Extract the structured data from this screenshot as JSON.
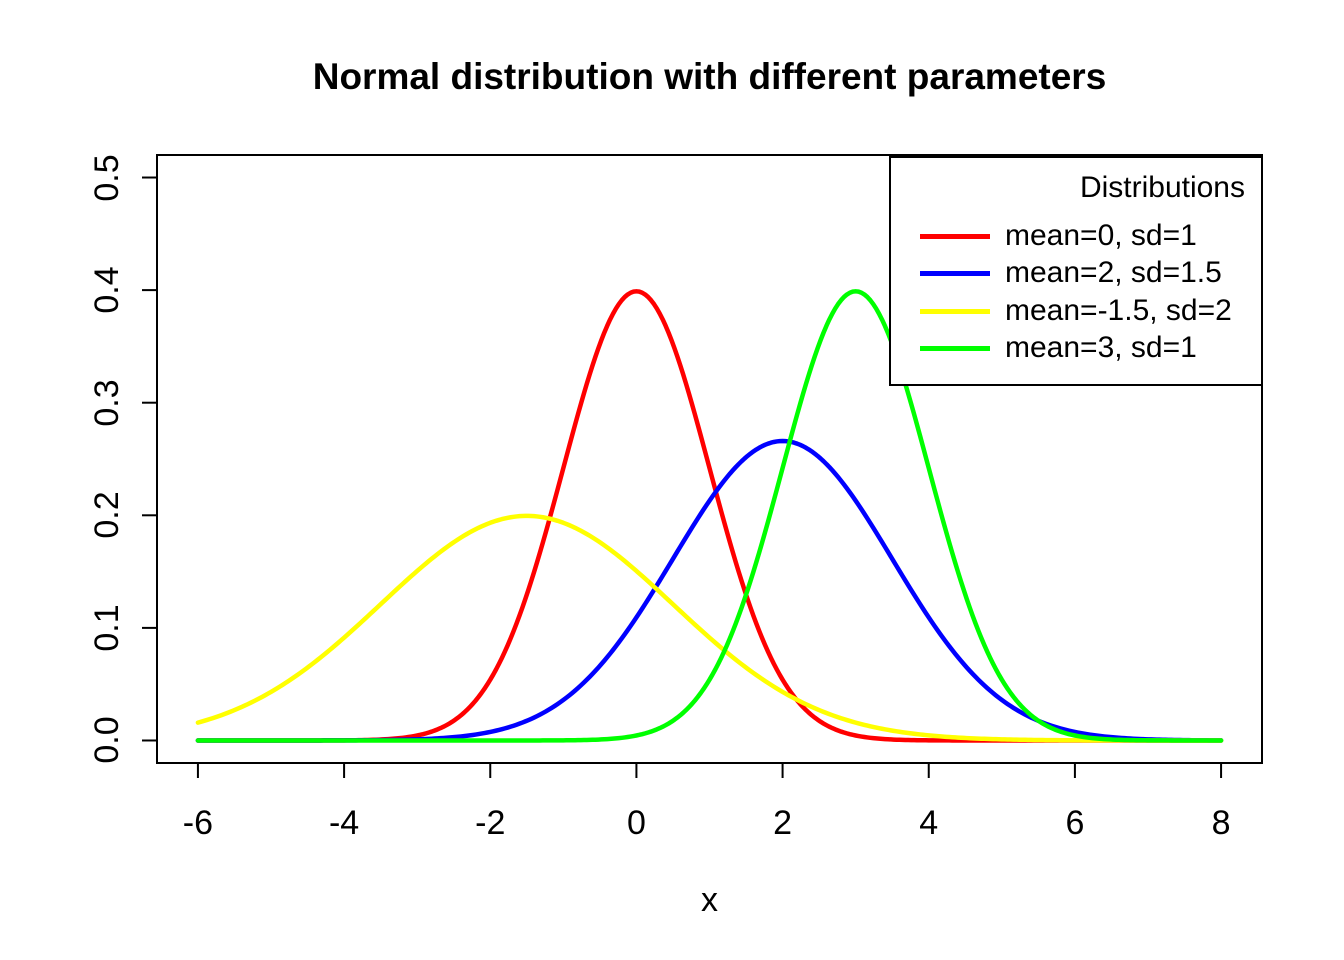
{
  "chart_data": {
    "type": "line",
    "title": "Normal distribution with different parameters",
    "xlabel": "x",
    "ylabel": "",
    "xlim": [
      -6,
      8
    ],
    "ylim": [
      0,
      0.5
    ],
    "x_ticks": [
      -6,
      -4,
      -2,
      0,
      2,
      4,
      6,
      8
    ],
    "x_tick_labels": [
      "-6",
      "-4",
      "-2",
      "0",
      "2",
      "4",
      "6",
      "8"
    ],
    "y_ticks": [
      0,
      0.1,
      0.2,
      0.3,
      0.4,
      0.5
    ],
    "y_tick_labels": [
      "0.0",
      "0.1",
      "0.2",
      "0.3",
      "0.4",
      "0.5"
    ],
    "grid": false,
    "background": "#FFFFFF",
    "axis_color": "#000000",
    "curve_function": "normal probability density: y = dnorm(x, mean, sd)",
    "sample_range": [
      -6,
      8
    ],
    "series": [
      {
        "name": "mean=0, sd=1",
        "color": "#FF0000",
        "mean": 0,
        "sd": 1,
        "peak_x": 0,
        "peak_y": 0.3989
      },
      {
        "name": "mean=2, sd=1.5",
        "color": "#0000FF",
        "mean": 2,
        "sd": 1.5,
        "peak_x": 2,
        "peak_y": 0.266
      },
      {
        "name": "mean=-1.5, sd=2",
        "color": "#FFFF00",
        "mean": -1.5,
        "sd": 2,
        "peak_x": -1.5,
        "peak_y": 0.1995
      },
      {
        "name": "mean=3, sd=1",
        "color": "#00FF00",
        "mean": 3,
        "sd": 1,
        "peak_x": 3,
        "peak_y": 0.3989
      }
    ],
    "legend": {
      "title": "Distributions",
      "position": "topright"
    }
  }
}
